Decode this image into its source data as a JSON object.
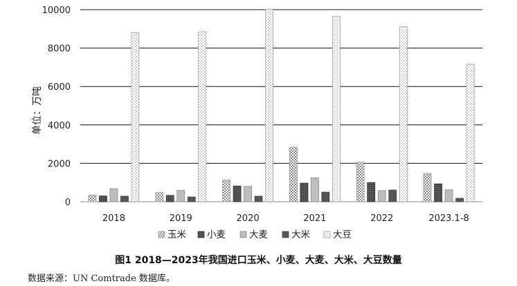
{
  "chart_data": {
    "type": "bar",
    "title": "",
    "xlabel": "",
    "ylabel": "单位：万吨",
    "ylim": [
      0,
      10000
    ],
    "yticks": [
      0,
      2000,
      4000,
      6000,
      8000,
      10000
    ],
    "grid": true,
    "legend_position": "bottom",
    "categories": [
      "2018",
      "2019",
      "2020",
      "2021",
      "2022",
      "2023.1-8"
    ],
    "series": [
      {
        "name": "玉米",
        "values": [
          350,
          480,
          1130,
          2840,
          2060,
          1470
        ]
      },
      {
        "name": "小麦",
        "values": [
          300,
          330,
          820,
          970,
          1000,
          930
        ]
      },
      {
        "name": "大麦",
        "values": [
          680,
          590,
          800,
          1250,
          580,
          620
        ]
      },
      {
        "name": "大米",
        "values": [
          290,
          250,
          290,
          500,
          610,
          180
        ]
      },
      {
        "name": "大豆",
        "values": [
          8800,
          8850,
          10030,
          9650,
          9110,
          7160
        ]
      }
    ]
  },
  "caption": "图1 2018—2023年我国进口玉米、小麦、大麦、大米、大豆数量",
  "source": "数据来源：UN Comtrade 数据库。"
}
